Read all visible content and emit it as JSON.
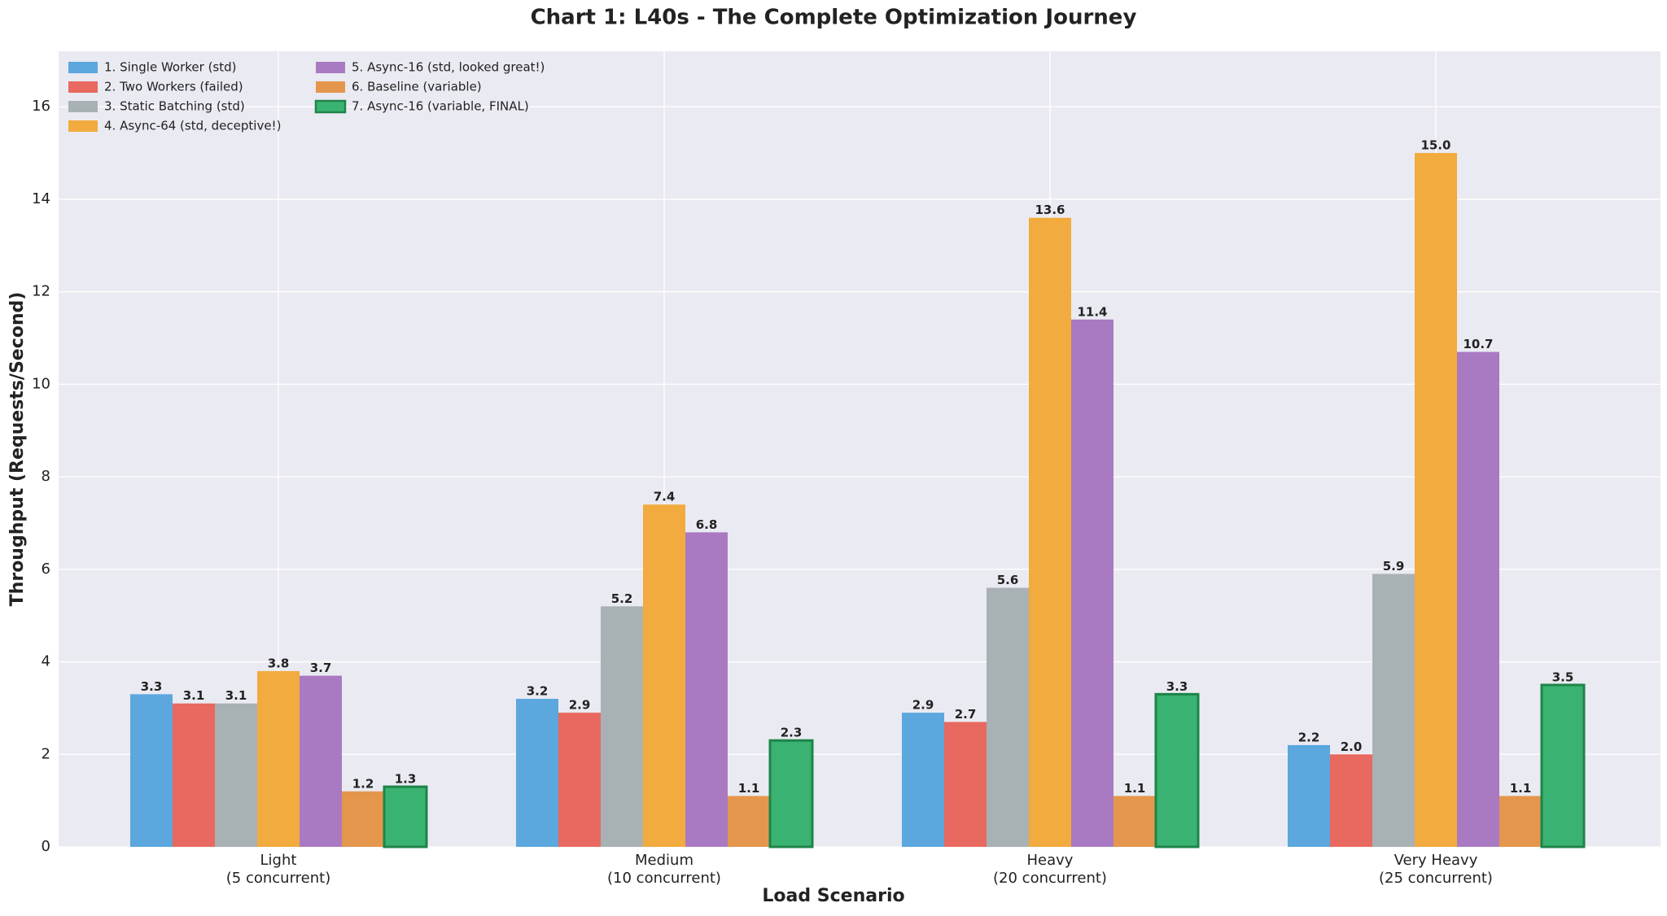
{
  "chart_data": {
    "type": "bar",
    "title": "Chart 1: L40s - The Complete Optimization Journey",
    "x_label": "Load Scenario",
    "y_label": "Throughput (Requests/Second)",
    "categories": [
      "Light\n(5 concurrent)",
      "Medium\n(10 concurrent)",
      "Heavy\n(20 concurrent)",
      "Very Heavy\n(25 concurrent)"
    ],
    "series": [
      {
        "name": "1. Single Worker (std)",
        "color": "#5ba7de",
        "values": [
          3.3,
          3.2,
          2.9,
          2.2
        ],
        "value_labels": [
          "3.3",
          "3.2",
          "2.9",
          "2.2"
        ]
      },
      {
        "name": "2. Two Workers (failed)",
        "color": "#e8695f",
        "values": [
          3.1,
          2.9,
          2.7,
          2.0
        ],
        "value_labels": [
          "3.1",
          "2.9",
          "2.7",
          "2.0"
        ]
      },
      {
        "name": "3. Static Batching (std)",
        "color": "#a8b1b4",
        "values": [
          3.1,
          5.2,
          5.6,
          5.9
        ],
        "value_labels": [
          "3.1",
          "5.2",
          "5.6",
          "5.9"
        ]
      },
      {
        "name": "4. Async-64 (std, deceptive!)",
        "color": "#f1ab3e",
        "values": [
          3.8,
          7.4,
          13.6,
          15.0
        ],
        "value_labels": [
          "3.8",
          "7.4",
          "13.6",
          "15.0"
        ]
      },
      {
        "name": "5. Async-16 (std, looked great!)",
        "color": "#a97ac2",
        "values": [
          3.7,
          6.8,
          11.4,
          10.7
        ],
        "value_labels": [
          "3.7",
          "6.8",
          "11.4",
          "10.7"
        ]
      },
      {
        "name": "6. Baseline (variable)",
        "color": "#e5964d",
        "values": [
          1.2,
          1.1,
          1.1,
          1.1
        ],
        "value_labels": [
          "1.2",
          "1.1",
          "1.1",
          "1.1"
        ]
      },
      {
        "name": "7. Async-16 (variable, FINAL)",
        "color": "#3ab372",
        "edge_color": "#1e8449",
        "values": [
          1.3,
          2.3,
          3.3,
          3.5
        ],
        "value_labels": [
          "1.3",
          "2.3",
          "3.3",
          "3.5"
        ]
      }
    ],
    "ylim": [
      0,
      17.2
    ],
    "yticks": [
      0,
      2,
      4,
      6,
      8,
      10,
      12,
      14,
      16
    ],
    "grid": true,
    "legend": "upper left"
  }
}
